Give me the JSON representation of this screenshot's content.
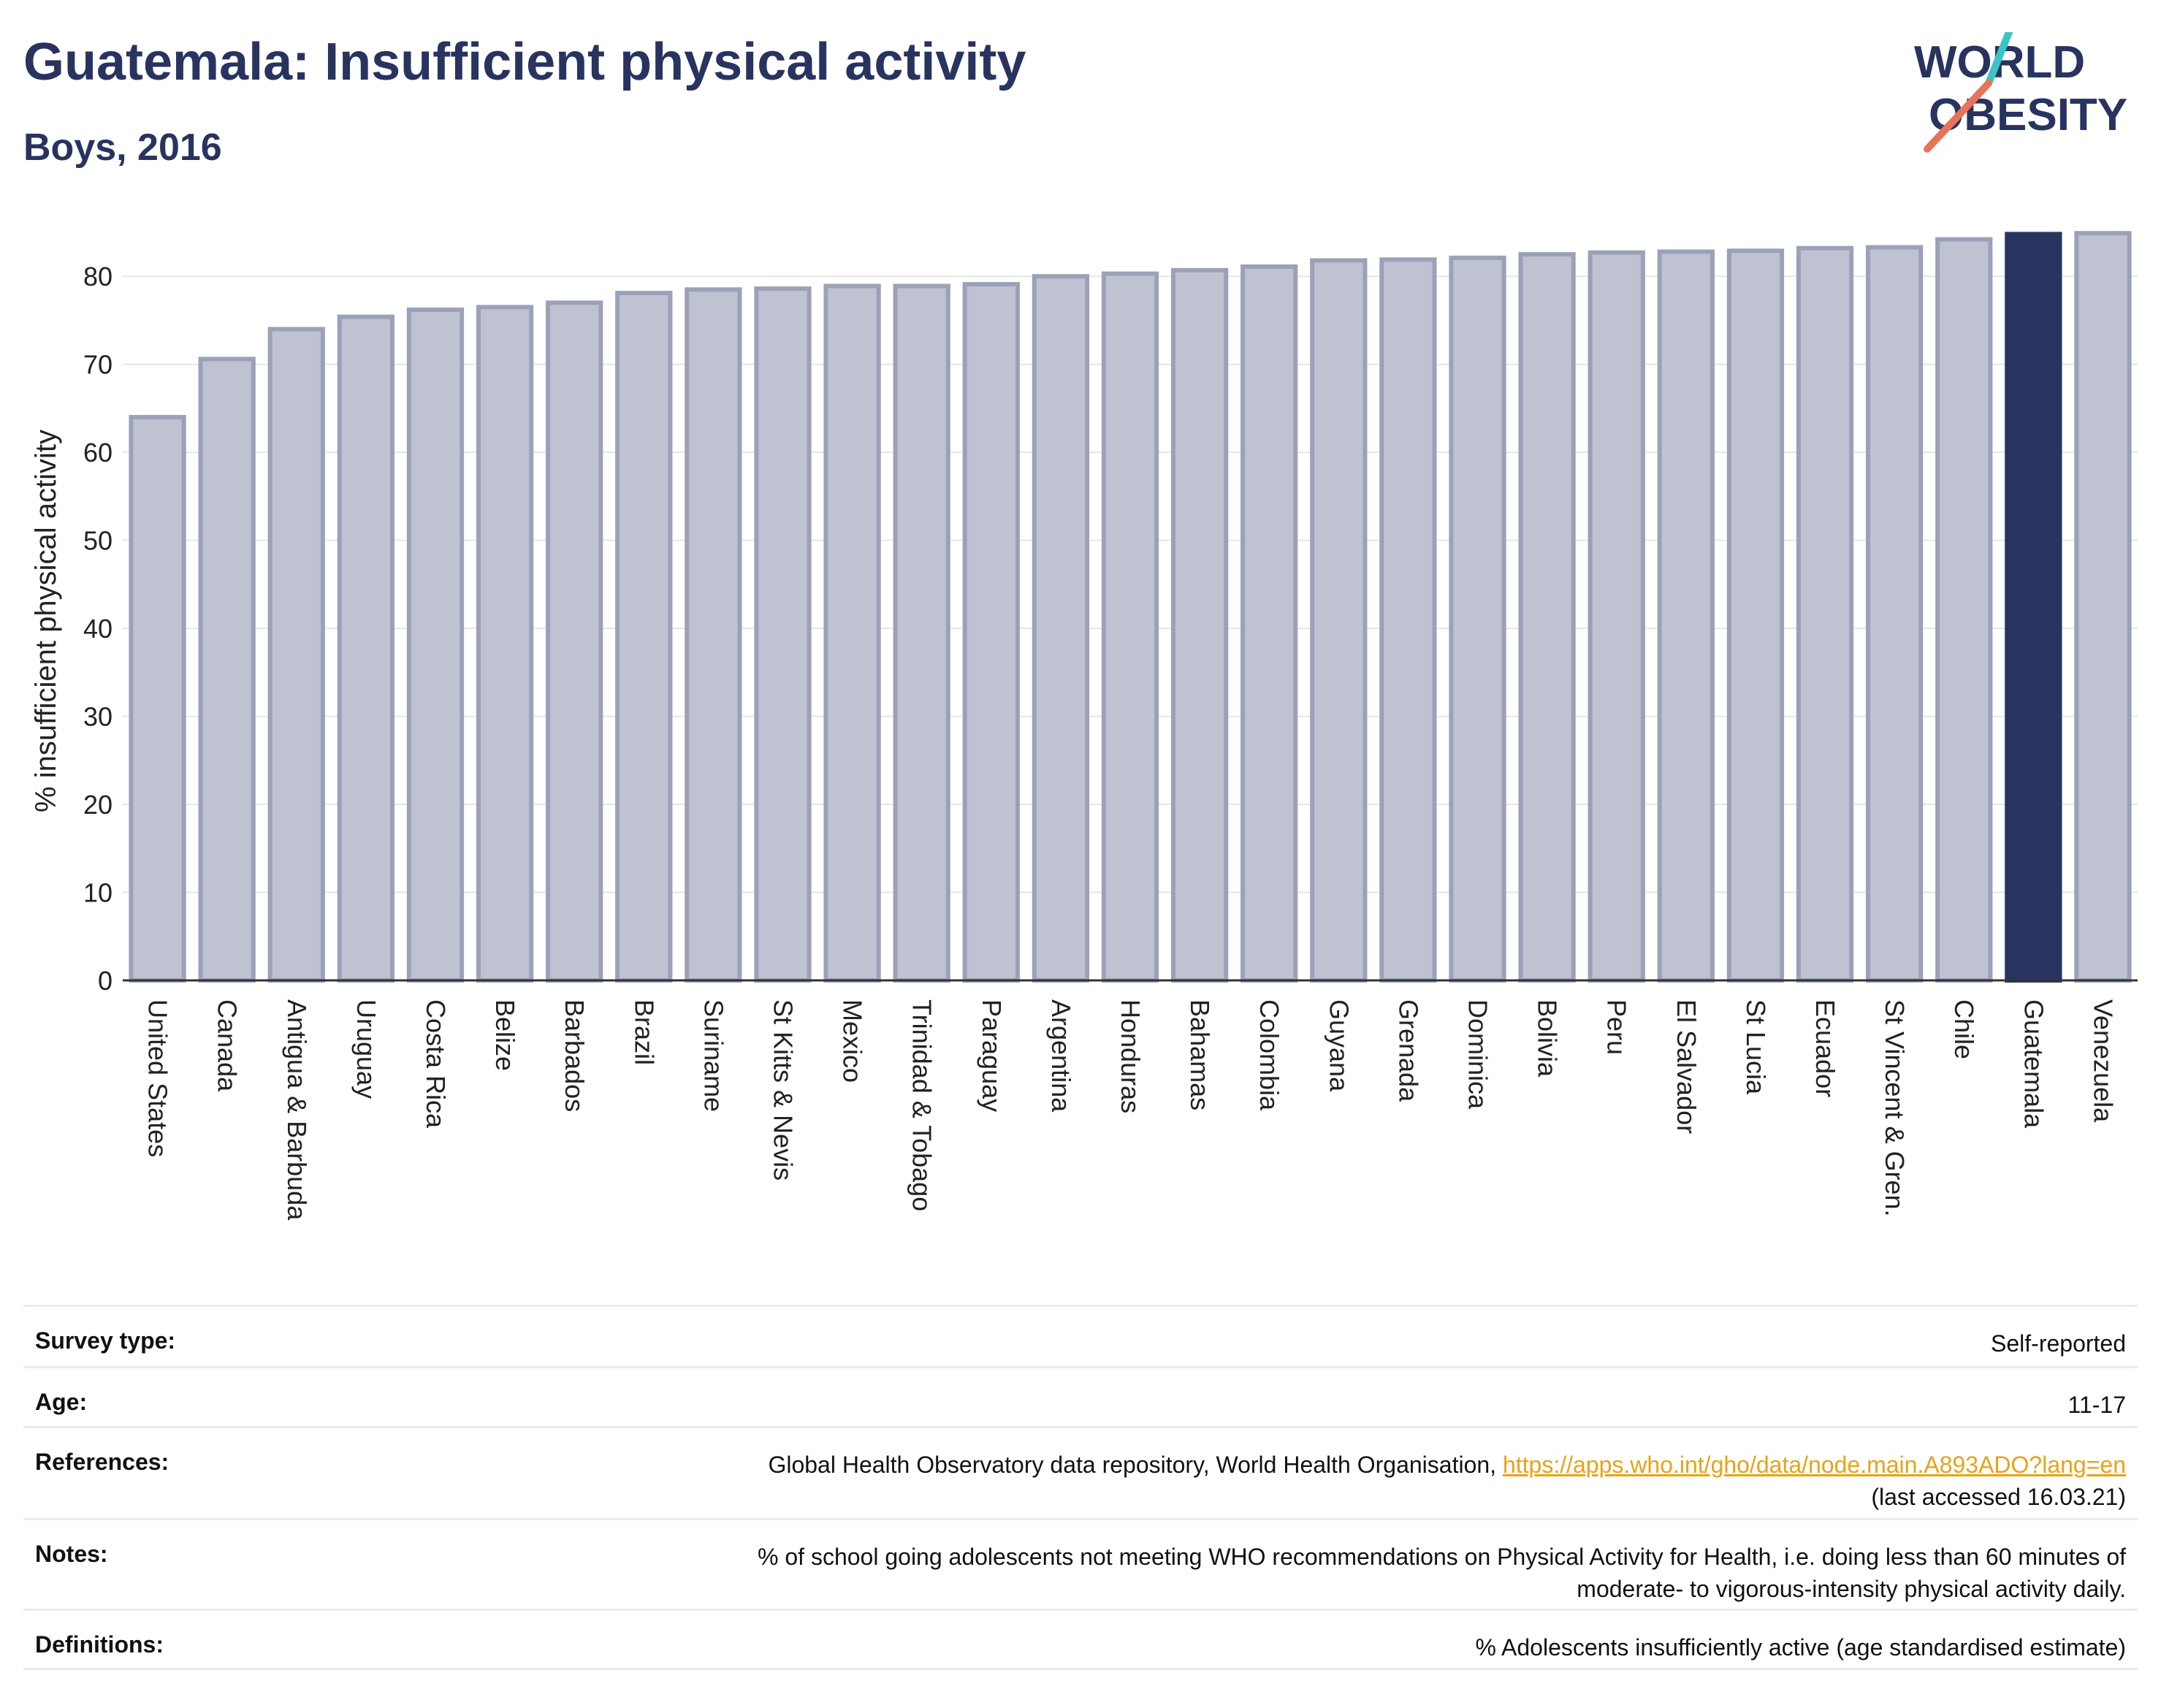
{
  "header": {
    "title": "Guatemala: Insufficient physical activity",
    "subtitle": "Boys, 2016"
  },
  "logo": {
    "line1": "WORLD",
    "line2": "OBESITY",
    "accent_colors": [
      "#3cc4c4",
      "#e8735a"
    ]
  },
  "colors": {
    "bar": "#bfc2d0",
    "bar_edge": "#9ba1b8",
    "highlight": "#283360",
    "grid": "#e6e6e6"
  },
  "chart_data": {
    "type": "bar",
    "ylabel": "% insufficient physical activity",
    "ylim": [
      0,
      85
    ],
    "yticks": [
      0,
      10,
      20,
      30,
      40,
      50,
      60,
      70,
      80
    ],
    "grid": true,
    "highlight": "Guatemala",
    "categories": [
      "United States",
      "Canada",
      "Antigua & Barbuda",
      "Uruguay",
      "Costa Rica",
      "Belize",
      "Barbados",
      "Brazil",
      "Suriname",
      "St Kitts & Nevis",
      "Mexico",
      "Trinidad & Tobago",
      "Paraguay",
      "Argentina",
      "Honduras",
      "Bahamas",
      "Colombia",
      "Guyana",
      "Grenada",
      "Dominica",
      "Bolivia",
      "Peru",
      "El Salvador",
      "St Lucia",
      "Ecuador",
      "St Vincent & Gren.",
      "Chile",
      "Guatemala",
      "Venezuela"
    ],
    "values": [
      64.0,
      70.6,
      74.0,
      75.4,
      76.2,
      76.5,
      77.0,
      78.1,
      78.5,
      78.6,
      78.9,
      78.9,
      79.1,
      80.0,
      80.3,
      80.7,
      81.1,
      81.8,
      81.9,
      82.1,
      82.5,
      82.7,
      82.8,
      82.9,
      83.2,
      83.3,
      84.2,
      84.8,
      84.9
    ]
  },
  "info": {
    "survey_label": "Survey type:",
    "survey_value": "Self-reported",
    "age_label": "Age:",
    "age_value": "11-17",
    "references_label": "References:",
    "references_text": "Global Health Observatory data repository, World Health Organisation, ",
    "references_link": "https://apps.who.int/gho/data/node.main.A893ADO?lang=en",
    "references_accessed": "(last accessed 16.03.21)",
    "notes_label": "Notes:",
    "notes_line1": "% of school going adolescents not meeting WHO recommendations on Physical Activity for Health, i.e. doing less than 60 minutes of",
    "notes_line2": "moderate- to vigorous-intensity physical activity daily.",
    "definitions_label": "Definitions:",
    "definitions_value": "% Adolescents insufficiently active (age standardised estimate)"
  }
}
